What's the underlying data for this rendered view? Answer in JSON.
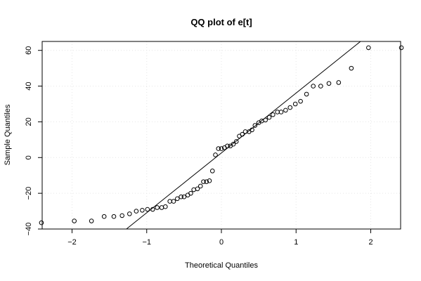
{
  "chart_data": {
    "type": "scatter",
    "title": "QQ plot of e[t]",
    "xlabel": "Theoretical Quantiles",
    "ylabel": "Sample Quantiles",
    "xlim": [
      -2.4,
      2.4
    ],
    "ylim": [
      -40,
      65
    ],
    "x_ticks": [
      -2,
      -1,
      0,
      1,
      2
    ],
    "x_tick_labels": [
      "−2",
      "−1",
      "0",
      "1",
      "2"
    ],
    "y_ticks": [
      -40,
      -20,
      0,
      20,
      40,
      60
    ],
    "y_tick_labels": [
      "−40",
      "−20",
      "0",
      "20",
      "40",
      "60"
    ],
    "grid": true,
    "reference_line": {
      "intercept": 2.6,
      "slope": 33.5
    },
    "points": {
      "x": [
        -2.41,
        -1.97,
        -1.74,
        -1.57,
        -1.44,
        -1.33,
        -1.23,
        -1.14,
        -1.06,
        -0.99,
        -0.92,
        -0.86,
        -0.8,
        -0.75,
        -0.69,
        -0.64,
        -0.59,
        -0.54,
        -0.5,
        -0.45,
        -0.41,
        -0.37,
        -0.32,
        -0.28,
        -0.24,
        -0.2,
        -0.16,
        -0.12,
        -0.08,
        -0.04,
        0.0,
        0.04,
        0.08,
        0.12,
        0.16,
        0.2,
        0.24,
        0.28,
        0.32,
        0.37,
        0.41,
        0.45,
        0.5,
        0.54,
        0.59,
        0.64,
        0.69,
        0.75,
        0.8,
        0.86,
        0.92,
        0.99,
        1.06,
        1.14,
        1.23,
        1.33,
        1.44,
        1.57,
        1.74,
        1.97,
        2.41
      ],
      "y": [
        -36.5,
        -35.5,
        -35.5,
        -33,
        -33,
        -32.5,
        -31.5,
        -30,
        -29.5,
        -29,
        -29,
        -28,
        -28,
        -27.5,
        -24.5,
        -24.5,
        -23,
        -22,
        -22,
        -21,
        -20,
        -18,
        -17.5,
        -16,
        -13.5,
        -13.5,
        -13,
        -7.5,
        1.5,
        5,
        5,
        5.5,
        6.5,
        6.5,
        7.5,
        9,
        12,
        13,
        14.5,
        14.5,
        15.5,
        18,
        19.5,
        20.5,
        21,
        22.5,
        24,
        25.5,
        25.5,
        26.5,
        28,
        30,
        31.5,
        35.5,
        40,
        40,
        41.5,
        42,
        50,
        61.5,
        61.5
      ]
    }
  }
}
